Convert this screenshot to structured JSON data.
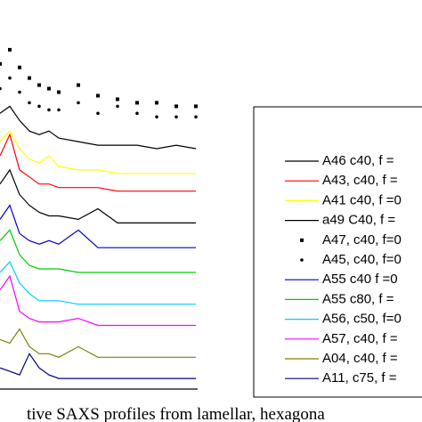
{
  "chart_data": {
    "type": "line",
    "caption": "tive SAXS profiles from lamellar, hexagona",
    "x": [
      0,
      5,
      10,
      15,
      20,
      25,
      30,
      40,
      50,
      60,
      70,
      80,
      90,
      100
    ],
    "xlim": [
      0,
      100
    ],
    "ylim": [
      0,
      100
    ],
    "series": [
      {
        "name": "A46 c40, f =",
        "color": "#000000",
        "values": [
          78,
          80,
          76,
          73,
          72,
          73,
          71,
          70,
          69,
          69,
          69,
          68,
          69,
          68
        ]
      },
      {
        "name": "A43, c40, f =",
        "color": "#ff0000",
        "values": [
          66,
          72,
          62,
          60,
          58,
          58,
          57,
          57,
          57,
          56,
          56,
          56,
          56,
          56
        ]
      },
      {
        "name": "A41 c40, f =0",
        "color": "#ffff00",
        "values": [
          70,
          73,
          68,
          65,
          64,
          66,
          63,
          62,
          62,
          61,
          61,
          61,
          61,
          61
        ]
      },
      {
        "name": "a49 C40, f =",
        "color": "#000000",
        "values": [
          58,
          62,
          55,
          52,
          50,
          49,
          49,
          48,
          51,
          47,
          47,
          47,
          47,
          47
        ]
      },
      {
        "name": "A47, c40, f=0",
        "color": "#000000",
        "marker": "square",
        "values": [
          92,
          96,
          91,
          88,
          86,
          85,
          84,
          86,
          83,
          82,
          81,
          81,
          80,
          80
        ]
      },
      {
        "name": "A45, c40, f=0",
        "color": "#000000",
        "marker": "dot",
        "values": [
          85,
          88,
          84,
          81,
          80,
          79,
          79,
          81,
          78,
          80,
          78,
          77,
          77,
          77
        ]
      },
      {
        "name": "A55 c40 f =0",
        "color": "#0000cc",
        "values": [
          48,
          52,
          44,
          42,
          41,
          42,
          41,
          45,
          40,
          40,
          40,
          40,
          40,
          40
        ]
      },
      {
        "name": "A55 c80, f =",
        "color": "#00cc00",
        "values": [
          42,
          45,
          38,
          35,
          34,
          34,
          34,
          33,
          33,
          33,
          33,
          33,
          33,
          33
        ]
      },
      {
        "name": "A56, c50, f=0",
        "color": "#00ccff",
        "values": [
          33,
          36,
          30,
          27,
          25,
          25,
          25,
          24,
          24,
          24,
          24,
          24,
          24,
          24
        ]
      },
      {
        "name": "A57, c40, f =",
        "color": "#ff00ff",
        "values": [
          28,
          32,
          22,
          20,
          19,
          19,
          19,
          20,
          18,
          18,
          18,
          18,
          18,
          18
        ]
      },
      {
        "name": "A04, c40, f =",
        "color": "#808000",
        "values": [
          14,
          13,
          17,
          12,
          10,
          10,
          9,
          12,
          9,
          9,
          9,
          9,
          9,
          9
        ]
      },
      {
        "name": "A11, c75, f =",
        "color": "#000080",
        "values": [
          6,
          5,
          4,
          10,
          6,
          4,
          3,
          3,
          3,
          3,
          3,
          3,
          3,
          3
        ]
      }
    ]
  }
}
